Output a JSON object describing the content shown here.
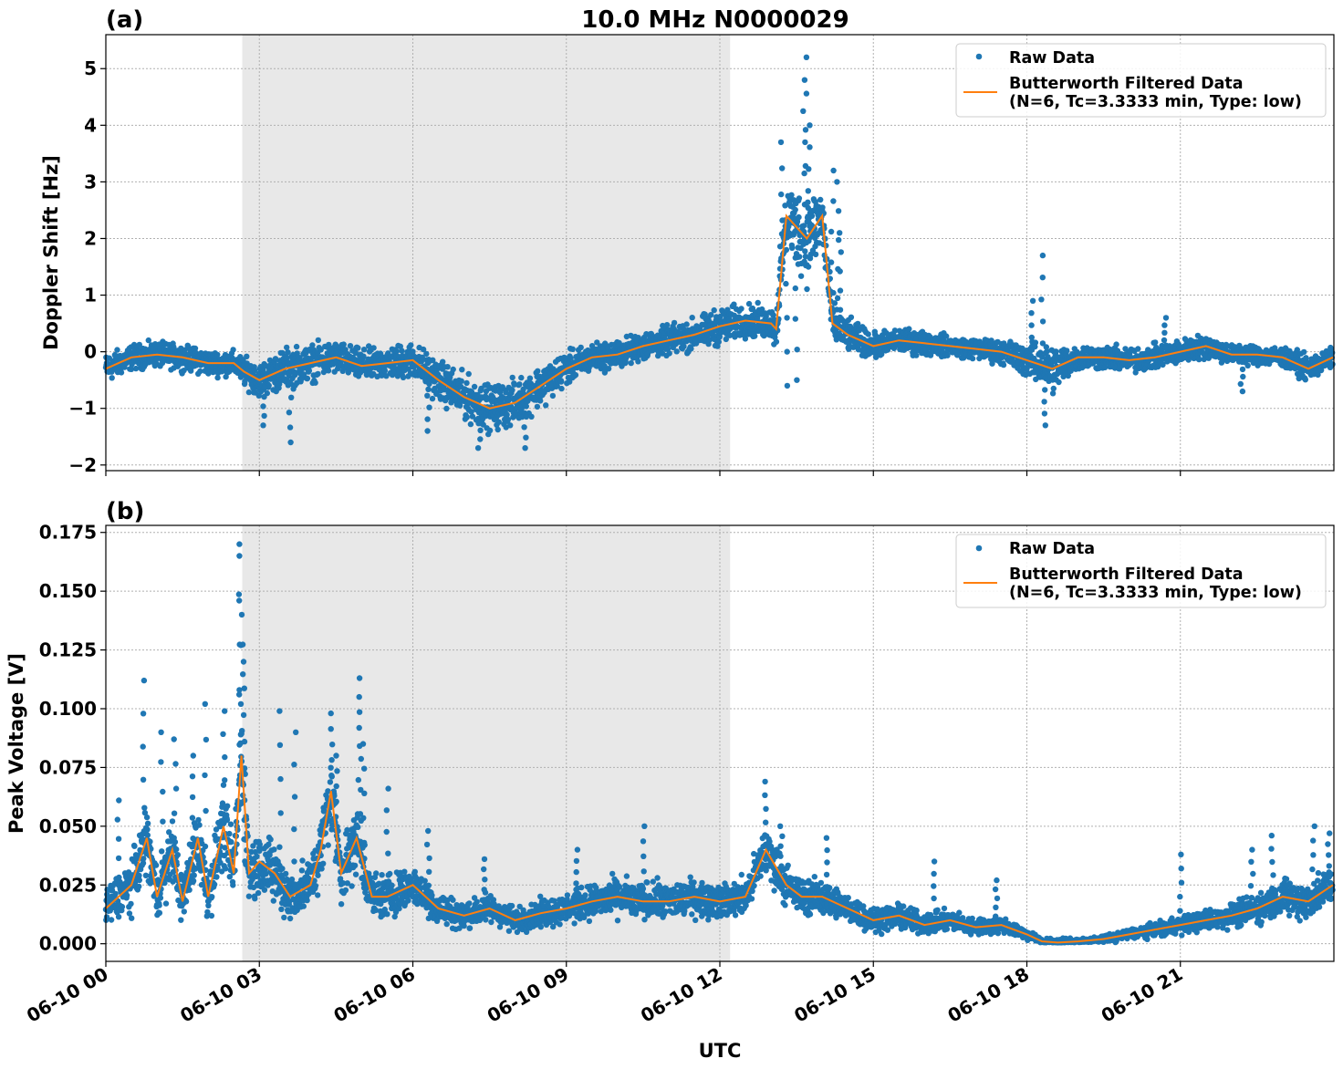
{
  "figure": {
    "title": "10.0 MHz N0000029",
    "colors": {
      "raw": "#1f77b4",
      "filtered": "#ff7f0e",
      "shade": "#e8e8e8"
    }
  },
  "chart_data": [
    {
      "type": "scatter",
      "panel_label": "(a)",
      "title": "10.0 MHz N0000029",
      "xlabel": "",
      "ylabel": "Doppler Shift [Hz]",
      "xlim": [
        "06-10 00:00",
        "06-11 00:00"
      ],
      "ylim": [
        -2.1,
        5.6
      ],
      "yticks": [
        -2,
        -1,
        0,
        1,
        2,
        3,
        4,
        5
      ],
      "ytick_labels": [
        "−2",
        "−1",
        "0",
        "1",
        "2",
        "3",
        "4",
        "5"
      ],
      "xticks": [
        "06-10 00",
        "06-10 03",
        "06-10 06",
        "06-10 09",
        "06-10 12",
        "06-10 15",
        "06-10 18",
        "06-10 21"
      ],
      "shaded_interval": [
        "06-10 02:40",
        "06-10 12:12"
      ],
      "grid": true,
      "legend_position": "top-right",
      "legend": {
        "raw": "Raw Data",
        "filtered_line1": "Butterworth Filtered Data",
        "filtered_line2": "(N=6, Tc=3.3333 min, Type: low)"
      },
      "series": [
        {
          "name": "Butterworth Filtered Data",
          "kind": "line",
          "x_hours": [
            0,
            0.5,
            1,
            1.5,
            2,
            2.5,
            2.7,
            3,
            3.5,
            4,
            4.5,
            5,
            5.5,
            6,
            6.5,
            7,
            7.5,
            8,
            8.5,
            9,
            9.5,
            10,
            10.5,
            11,
            11.5,
            12,
            12.5,
            13,
            13.1,
            13.3,
            13.5,
            13.7,
            14,
            14.2,
            14.5,
            15,
            15.5,
            16,
            16.5,
            17,
            17.5,
            18,
            18.5,
            19,
            19.5,
            20,
            20.5,
            21,
            21.5,
            22,
            22.5,
            23,
            23.5,
            23.98
          ],
          "y": [
            -0.3,
            -0.1,
            -0.05,
            -0.1,
            -0.2,
            -0.2,
            -0.35,
            -0.5,
            -0.3,
            -0.2,
            -0.1,
            -0.25,
            -0.2,
            -0.15,
            -0.5,
            -0.8,
            -1.0,
            -0.9,
            -0.6,
            -0.3,
            -0.1,
            -0.05,
            0.1,
            0.2,
            0.3,
            0.45,
            0.55,
            0.5,
            0.4,
            2.4,
            2.2,
            2.0,
            2.4,
            0.5,
            0.3,
            0.1,
            0.2,
            0.15,
            0.1,
            0.05,
            0.0,
            -0.15,
            -0.3,
            -0.1,
            -0.1,
            -0.15,
            -0.1,
            0.0,
            0.1,
            -0.05,
            -0.05,
            -0.1,
            -0.3,
            -0.1
          ]
        },
        {
          "name": "Raw Data",
          "kind": "scatter",
          "x_hours": [
            0,
            0.5,
            1,
            1.5,
            2,
            2.5,
            2.7,
            3,
            3.5,
            4,
            4.5,
            5,
            5.5,
            6,
            6.5,
            7,
            7.5,
            8,
            8.5,
            9,
            9.5,
            10,
            10.5,
            11,
            11.5,
            12,
            12.5,
            13,
            13.1,
            13.3,
            13.5,
            13.7,
            14,
            14.2,
            14.5,
            15,
            15.5,
            16,
            16.5,
            17,
            17.5,
            18,
            18.5,
            19,
            19.5,
            20,
            20.5,
            21,
            21.5,
            22,
            22.5,
            23,
            23.5,
            23.98
          ],
          "y_center": [
            -0.3,
            -0.1,
            -0.05,
            -0.1,
            -0.2,
            -0.2,
            -0.35,
            -0.5,
            -0.3,
            -0.2,
            -0.1,
            -0.25,
            -0.2,
            -0.15,
            -0.5,
            -0.8,
            -1.0,
            -0.9,
            -0.6,
            -0.3,
            -0.1,
            -0.05,
            0.1,
            0.2,
            0.3,
            0.45,
            0.55,
            0.5,
            0.4,
            2.4,
            2.2,
            2.0,
            2.4,
            0.5,
            0.3,
            0.1,
            0.2,
            0.15,
            0.1,
            0.05,
            0.0,
            -0.15,
            -0.3,
            -0.1,
            -0.1,
            -0.15,
            -0.1,
            0.0,
            0.1,
            -0.05,
            -0.05,
            -0.1,
            -0.3,
            -0.1
          ],
          "spread": [
            0.35,
            0.3,
            0.3,
            0.3,
            0.3,
            0.3,
            0.35,
            0.4,
            0.5,
            0.45,
            0.4,
            0.4,
            0.4,
            0.45,
            0.5,
            0.55,
            0.55,
            0.55,
            0.5,
            0.4,
            0.35,
            0.35,
            0.35,
            0.35,
            0.4,
            0.45,
            0.4,
            0.4,
            0.5,
            0.8,
            1.0,
            1.1,
            0.8,
            0.5,
            0.4,
            0.3,
            0.3,
            0.3,
            0.25,
            0.25,
            0.3,
            0.4,
            0.6,
            0.3,
            0.3,
            0.3,
            0.3,
            0.3,
            0.3,
            0.25,
            0.25,
            0.25,
            0.3,
            0.25
          ],
          "outliers": [
            [
              3.1,
              -1.3
            ],
            [
              3.6,
              -1.6
            ],
            [
              6.3,
              -1.4
            ],
            [
              7.3,
              -1.7
            ],
            [
              8.2,
              -1.7
            ],
            [
              13.2,
              3.7
            ],
            [
              13.3,
              -0.6
            ],
            [
              13.5,
              -0.5
            ],
            [
              13.65,
              4.8
            ],
            [
              13.7,
              5.2
            ],
            [
              13.75,
              4.0
            ],
            [
              14.2,
              3.2
            ],
            [
              14.3,
              3.0
            ],
            [
              14.35,
              2.1
            ],
            [
              18.3,
              1.7
            ],
            [
              18.35,
              -1.3
            ],
            [
              18.1,
              0.9
            ],
            [
              16.0,
              0.3
            ],
            [
              22.2,
              -0.7
            ],
            [
              20.7,
              0.6
            ]
          ]
        }
      ]
    },
    {
      "type": "scatter",
      "panel_label": "(b)",
      "title": "",
      "xlabel": "UTC",
      "ylabel": "Peak Voltage [V]",
      "xlim": [
        "06-10 00:00",
        "06-11 00:00"
      ],
      "ylim": [
        -0.0075,
        0.178
      ],
      "yticks": [
        0,
        0.025,
        0.05,
        0.075,
        0.1,
        0.125,
        0.15,
        0.175
      ],
      "ytick_labels": [
        "0.000",
        "0.025",
        "0.050",
        "0.075",
        "0.100",
        "0.125",
        "0.150",
        "0.175"
      ],
      "xticks": [
        "06-10 00",
        "06-10 03",
        "06-10 06",
        "06-10 09",
        "06-10 12",
        "06-10 15",
        "06-10 18",
        "06-10 21"
      ],
      "shaded_interval": [
        "06-10 02:40",
        "06-10 12:12"
      ],
      "grid": true,
      "legend_position": "top-right",
      "legend": {
        "raw": "Raw Data",
        "filtered_line1": "Butterworth Filtered Data",
        "filtered_line2": "(N=6, Tc=3.3333 min, Type: low)"
      },
      "series": [
        {
          "name": "Butterworth Filtered Data",
          "kind": "line",
          "x_hours": [
            0,
            0.5,
            0.8,
            1,
            1.3,
            1.5,
            1.8,
            2,
            2.3,
            2.5,
            2.65,
            2.8,
            3,
            3.3,
            3.6,
            4,
            4.2,
            4.4,
            4.6,
            4.9,
            5.2,
            5.5,
            6,
            6.5,
            7,
            7.5,
            8,
            8.5,
            9,
            9.5,
            10,
            10.5,
            11,
            11.5,
            12,
            12.5,
            12.9,
            13.3,
            13.6,
            14,
            14.5,
            15,
            15.5,
            16,
            16.5,
            17,
            17.5,
            18,
            18.3,
            18.6,
            19,
            19.5,
            20,
            20.5,
            21,
            21.5,
            22,
            22.5,
            23,
            23.5,
            23.98
          ],
          "y": [
            0.015,
            0.025,
            0.045,
            0.02,
            0.04,
            0.018,
            0.045,
            0.02,
            0.05,
            0.03,
            0.08,
            0.03,
            0.035,
            0.03,
            0.02,
            0.025,
            0.04,
            0.065,
            0.03,
            0.045,
            0.02,
            0.02,
            0.025,
            0.015,
            0.012,
            0.015,
            0.01,
            0.013,
            0.015,
            0.018,
            0.02,
            0.018,
            0.018,
            0.02,
            0.018,
            0.02,
            0.04,
            0.025,
            0.02,
            0.02,
            0.015,
            0.01,
            0.012,
            0.008,
            0.01,
            0.007,
            0.008,
            0.004,
            0.001,
            0.0005,
            0.001,
            0.002,
            0.004,
            0.006,
            0.008,
            0.01,
            0.012,
            0.015,
            0.02,
            0.018,
            0.025
          ]
        },
        {
          "name": "Raw Data",
          "kind": "scatter",
          "x_hours": [
            0,
            0.5,
            0.8,
            1,
            1.3,
            1.5,
            1.8,
            2,
            2.3,
            2.5,
            2.65,
            2.8,
            3,
            3.3,
            3.6,
            4,
            4.2,
            4.4,
            4.6,
            4.9,
            5.2,
            5.5,
            6,
            6.5,
            7,
            7.5,
            8,
            8.5,
            9,
            9.5,
            10,
            10.5,
            11,
            11.5,
            12,
            12.5,
            12.9,
            13.3,
            13.6,
            14,
            14.5,
            15,
            15.5,
            16,
            16.5,
            17,
            17.5,
            18,
            18.3,
            18.6,
            19,
            19.5,
            20,
            20.5,
            21,
            21.5,
            22,
            22.5,
            23,
            23.5,
            23.98
          ],
          "y_center": [
            0.015,
            0.025,
            0.045,
            0.02,
            0.04,
            0.018,
            0.045,
            0.02,
            0.05,
            0.03,
            0.08,
            0.03,
            0.035,
            0.03,
            0.02,
            0.025,
            0.04,
            0.065,
            0.03,
            0.045,
            0.02,
            0.02,
            0.025,
            0.015,
            0.012,
            0.015,
            0.01,
            0.013,
            0.015,
            0.018,
            0.02,
            0.018,
            0.018,
            0.02,
            0.018,
            0.02,
            0.04,
            0.025,
            0.02,
            0.02,
            0.015,
            0.01,
            0.012,
            0.008,
            0.01,
            0.007,
            0.008,
            0.004,
            0.001,
            0.0005,
            0.001,
            0.002,
            0.004,
            0.006,
            0.008,
            0.01,
            0.012,
            0.015,
            0.02,
            0.018,
            0.025
          ],
          "spread": [
            0.012,
            0.015,
            0.02,
            0.014,
            0.018,
            0.014,
            0.02,
            0.016,
            0.022,
            0.02,
            0.03,
            0.022,
            0.02,
            0.018,
            0.016,
            0.016,
            0.02,
            0.025,
            0.018,
            0.02,
            0.014,
            0.013,
            0.012,
            0.01,
            0.008,
            0.009,
            0.007,
            0.008,
            0.009,
            0.01,
            0.011,
            0.011,
            0.011,
            0.011,
            0.01,
            0.011,
            0.015,
            0.012,
            0.011,
            0.01,
            0.009,
            0.007,
            0.007,
            0.006,
            0.006,
            0.005,
            0.005,
            0.003,
            0.001,
            0.0008,
            0.001,
            0.002,
            0.003,
            0.004,
            0.005,
            0.006,
            0.007,
            0.009,
            0.011,
            0.012,
            0.012
          ],
          "outliers": [
            [
              0.25,
              0.061
            ],
            [
              0.75,
              0.112
            ],
            [
              1.1,
              0.09
            ],
            [
              1.35,
              0.087
            ],
            [
              1.7,
              0.08
            ],
            [
              1.95,
              0.102
            ],
            [
              2.3,
              0.099
            ],
            [
              2.6,
              0.17
            ],
            [
              2.62,
              0.165
            ],
            [
              2.66,
              0.14
            ],
            [
              2.7,
              0.12
            ],
            [
              3.4,
              0.099
            ],
            [
              3.7,
              0.09
            ],
            [
              4.4,
              0.098
            ],
            [
              4.5,
              0.08
            ],
            [
              4.95,
              0.113
            ],
            [
              4.97,
              0.105
            ],
            [
              5.05,
              0.085
            ],
            [
              5.5,
              0.066
            ],
            [
              6.3,
              0.048
            ],
            [
              7.4,
              0.036
            ],
            [
              9.2,
              0.04
            ],
            [
              10.5,
              0.05
            ],
            [
              12.9,
              0.069
            ],
            [
              13.2,
              0.05
            ],
            [
              14.1,
              0.045
            ],
            [
              16.2,
              0.035
            ],
            [
              17.4,
              0.027
            ],
            [
              21.0,
              0.038
            ],
            [
              22.4,
              0.04
            ],
            [
              22.8,
              0.046
            ],
            [
              23.6,
              0.05
            ],
            [
              23.9,
              0.047
            ]
          ]
        }
      ]
    }
  ]
}
